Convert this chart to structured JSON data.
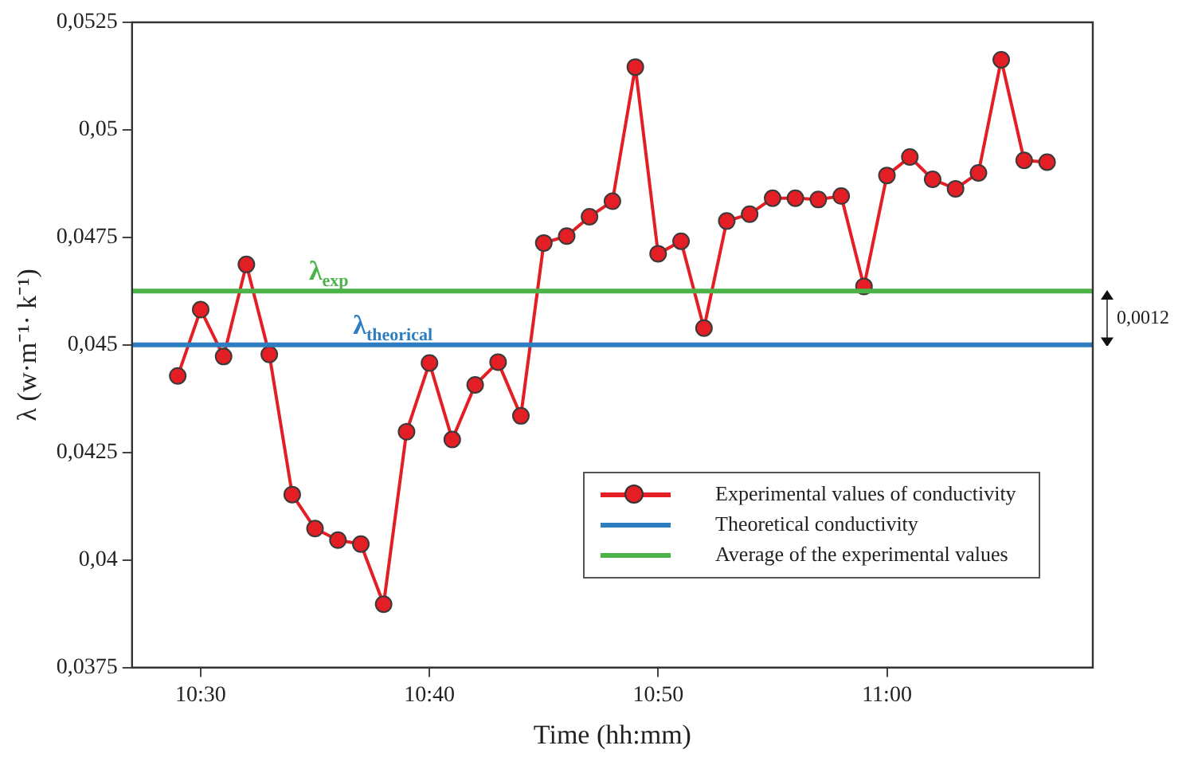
{
  "chart_data": {
    "type": "line",
    "xlabel": "Time (hh:mm)",
    "ylabel": "λ (w·m⁻¹· k⁻¹)",
    "x": [
      10.4833,
      10.5,
      10.5167,
      10.5333,
      10.55,
      10.5667,
      10.5833,
      10.6,
      10.6167,
      10.6333,
      10.65,
      10.6667,
      10.6833,
      10.7,
      10.7167,
      10.7333,
      10.75,
      10.7667,
      10.7833,
      10.8,
      10.8167,
      10.8333,
      10.85,
      10.8667,
      10.8833,
      10.9,
      10.9167,
      10.9333,
      10.95,
      10.9667,
      10.9833,
      11,
      11.0167,
      11.0333,
      11.05,
      11.0667,
      11.0833,
      11.1,
      11.1167
    ],
    "series": [
      {
        "name": "Experimental values of conductivity",
        "color": "#e31e24",
        "values": [
          0.04428,
          0.04582,
          0.04473,
          0.04687,
          0.04478,
          0.04152,
          0.04073,
          0.04046,
          0.04037,
          0.03897,
          0.04298,
          0.04458,
          0.0428,
          0.04407,
          0.0446,
          0.04335,
          0.04737,
          0.04753,
          0.04798,
          0.04834,
          0.05146,
          0.04712,
          0.04741,
          0.04539,
          0.04788,
          0.04804,
          0.04841,
          0.04841,
          0.04838,
          0.04846,
          0.04636,
          0.04894,
          0.04937,
          0.04885,
          0.04863,
          0.049,
          0.05163,
          0.04929,
          0.04925
        ]
      }
    ],
    "marker": "circle",
    "line_style": "solid",
    "grid": false,
    "legend": "bottom right",
    "xlim": [
      10.45,
      11.15
    ],
    "xticks": [
      {
        "value": 10.5,
        "label": "10:30"
      },
      {
        "value": 10.6667,
        "label": "10:40"
      },
      {
        "value": 10.8333,
        "label": "10:50"
      },
      {
        "value": 11,
        "label": "11:00"
      }
    ],
    "ylim": [
      0.0375,
      0.0525
    ],
    "yticks": [
      {
        "value": 0.0375,
        "label": "0,0375"
      },
      {
        "value": 0.04,
        "label": "0,04"
      },
      {
        "value": 0.0425,
        "label": "0,0425"
      },
      {
        "value": 0.045,
        "label": "0,045"
      },
      {
        "value": 0.0475,
        "label": "0,0475"
      },
      {
        "value": 0.05,
        "label": "0,05"
      },
      {
        "value": 0.0525,
        "label": "0,0525"
      }
    ],
    "ref_lines": [
      {
        "axis": "y",
        "value": 0.045,
        "label": "Theoretical conductivity",
        "color": "#2e7dc0"
      },
      {
        "axis": "y",
        "value": 0.04625,
        "label": "Average of the experimental values",
        "color": "#4cb34a"
      }
    ],
    "annotations": [
      {
        "text": "λ$_{exp}$",
        "x": 10.5933,
        "y": 0.04625
      },
      {
        "text": "λ$_{theorical}$",
        "x": 10.64,
        "y": 0.045
      },
      "0,0012"
    ]
  }
}
